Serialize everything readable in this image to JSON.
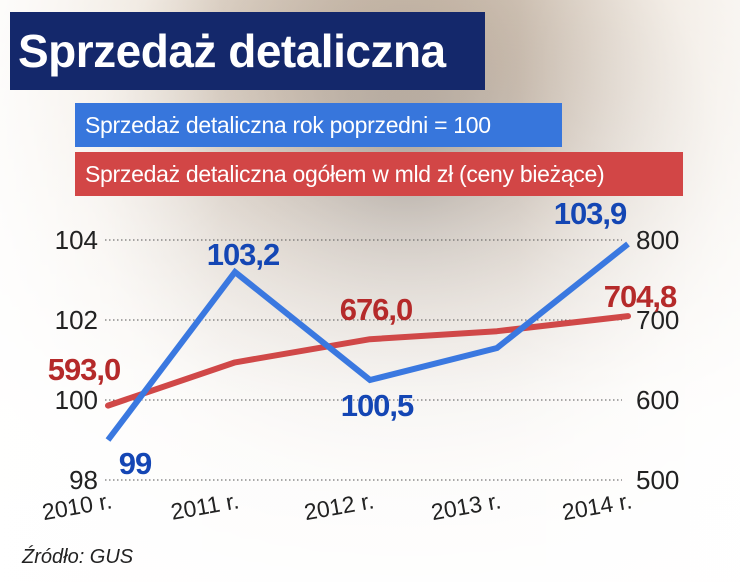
{
  "title": "Sprzedaż detaliczna",
  "source": "Źródło: GUS",
  "chart_data": {
    "type": "line",
    "title": "Sprzedaż detaliczna",
    "categories": [
      "2010 r.",
      "2011 r.",
      "2012 r.",
      "2013 r.",
      "2014 r."
    ],
    "left_axis": {
      "ticks": [
        "98",
        "100",
        "102",
        "104"
      ],
      "range": [
        98,
        104
      ]
    },
    "right_axis": {
      "ticks": [
        "500",
        "600",
        "700",
        "800"
      ],
      "range": [
        500,
        800
      ]
    },
    "grid": true,
    "series": [
      {
        "name": "Sprzedaż detaliczna rok poprzedni = 100",
        "axis": "left",
        "color": "#3a78e0",
        "values": [
          99,
          103.2,
          100.5,
          101.3,
          103.9
        ],
        "labels": [
          "99",
          "103,2",
          "100,5",
          "",
          "103,9"
        ],
        "label_color": "#1446b4"
      },
      {
        "name": "Sprzedaż detaliczna ogółem w mld zł (ceny bieżące)",
        "axis": "right",
        "color": "#d04848",
        "values": [
          593.0,
          647,
          676.0,
          686,
          704.8
        ],
        "labels": [
          "593,0",
          "",
          "676,0",
          "",
          "704,8"
        ],
        "label_color": "#b52a2a"
      }
    ]
  }
}
